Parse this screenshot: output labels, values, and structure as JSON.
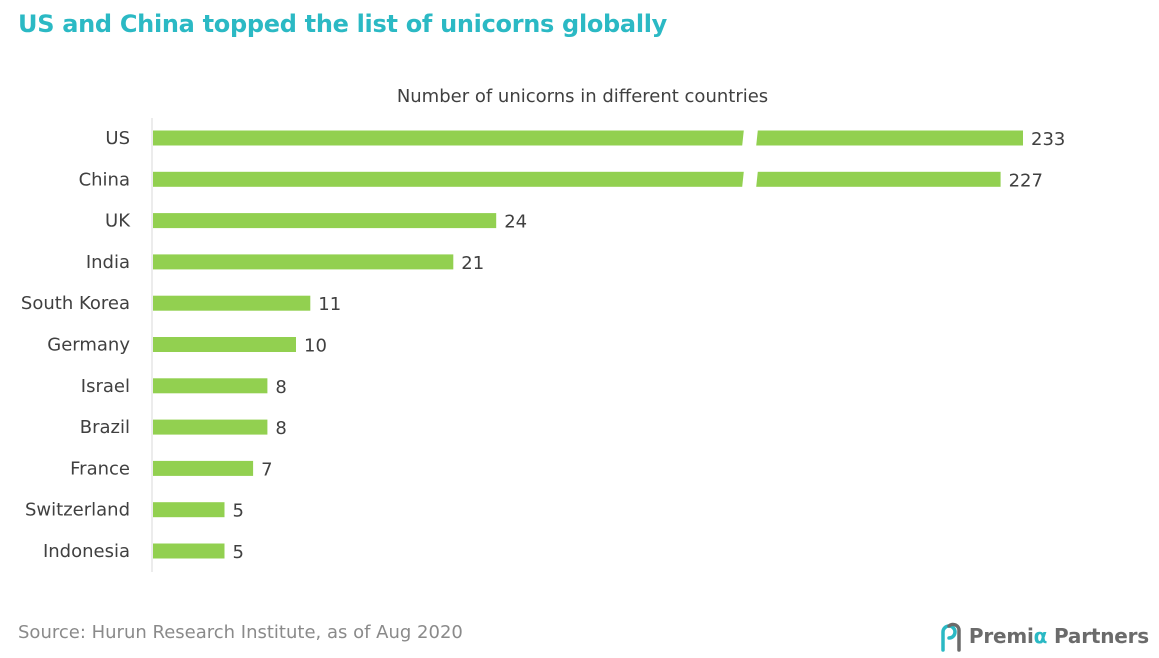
{
  "headline": "US and China topped the list of unicorns globally",
  "source": "Source: Hurun Research Institute, as of Aug 2020",
  "logo": {
    "part1": "Premi",
    "alpha": "α",
    "part2": "Partners"
  },
  "colors": {
    "bar": "#92d050",
    "headline": "#2bb9c4",
    "text": "#404040"
  },
  "chart_data": {
    "type": "bar",
    "orientation": "horizontal",
    "title": "Number of unicorns in different countries",
    "xlabel": "",
    "ylabel": "",
    "categories": [
      "US",
      "China",
      "UK",
      "India",
      "South Korea",
      "Germany",
      "Israel",
      "Brazil",
      "France",
      "Switzerland",
      "Indonesia"
    ],
    "values": [
      233,
      227,
      24,
      21,
      11,
      10,
      8,
      8,
      7,
      5,
      5
    ],
    "data_labels": [
      "233",
      "227",
      "24",
      "21",
      "11",
      "10",
      "8",
      "8",
      "7",
      "5",
      "5"
    ],
    "broken_axis_bars": [
      "US",
      "China"
    ],
    "grid": false,
    "legend": "none"
  }
}
